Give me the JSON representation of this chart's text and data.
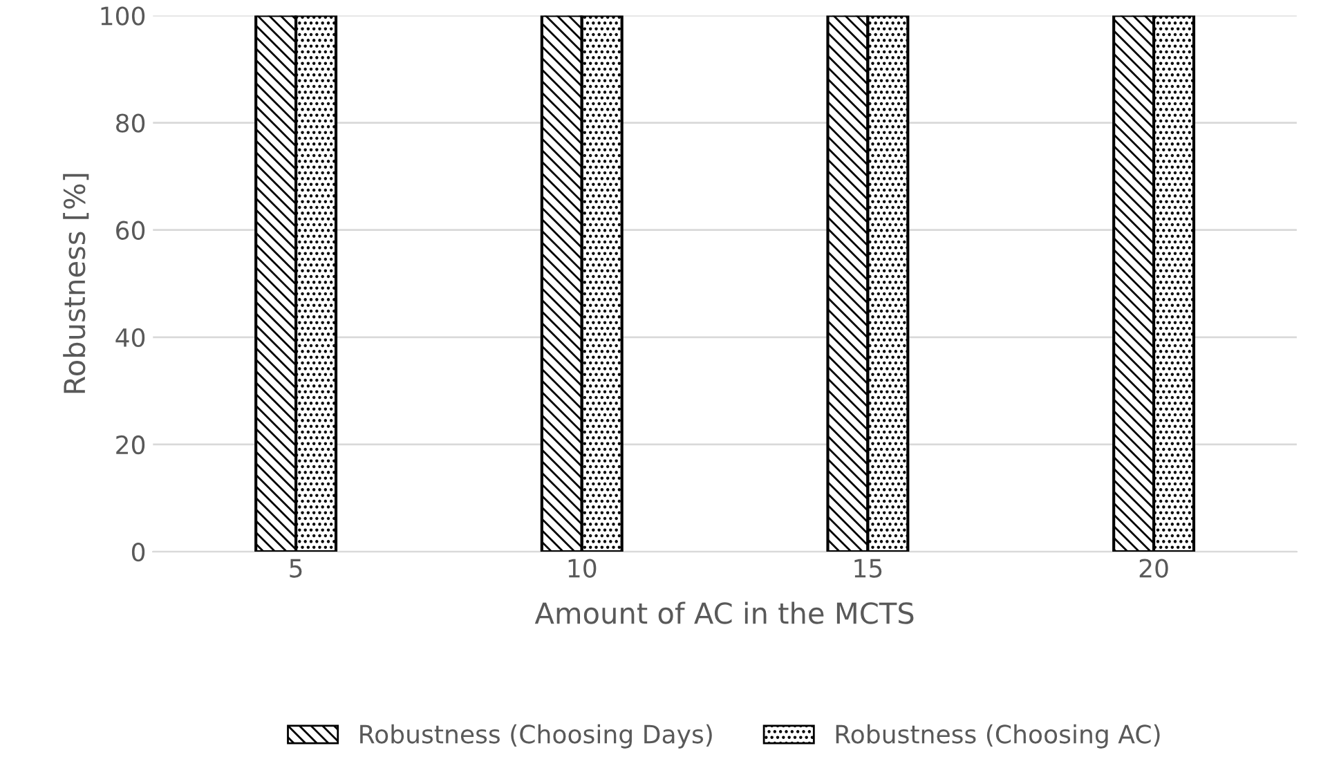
{
  "chart_data": {
    "type": "bar",
    "xlabel": "Amount of AC in the MCTS",
    "ylabel": "Robustness [%]",
    "categories": [
      "5",
      "10",
      "15",
      "20"
    ],
    "series": [
      {
        "name": "Robustness (Choosing Days)",
        "color": "#000000",
        "values": [
          100,
          100,
          100,
          100
        ]
      },
      {
        "name": "Robustness (Choosing AC)",
        "color": "#000000",
        "values": [
          100,
          100,
          100,
          100
        ]
      }
    ],
    "ylim": [
      0,
      100
    ],
    "yticks": [
      0,
      20,
      40,
      60,
      80,
      100
    ],
    "grid": "y",
    "legend": "bottom"
  }
}
